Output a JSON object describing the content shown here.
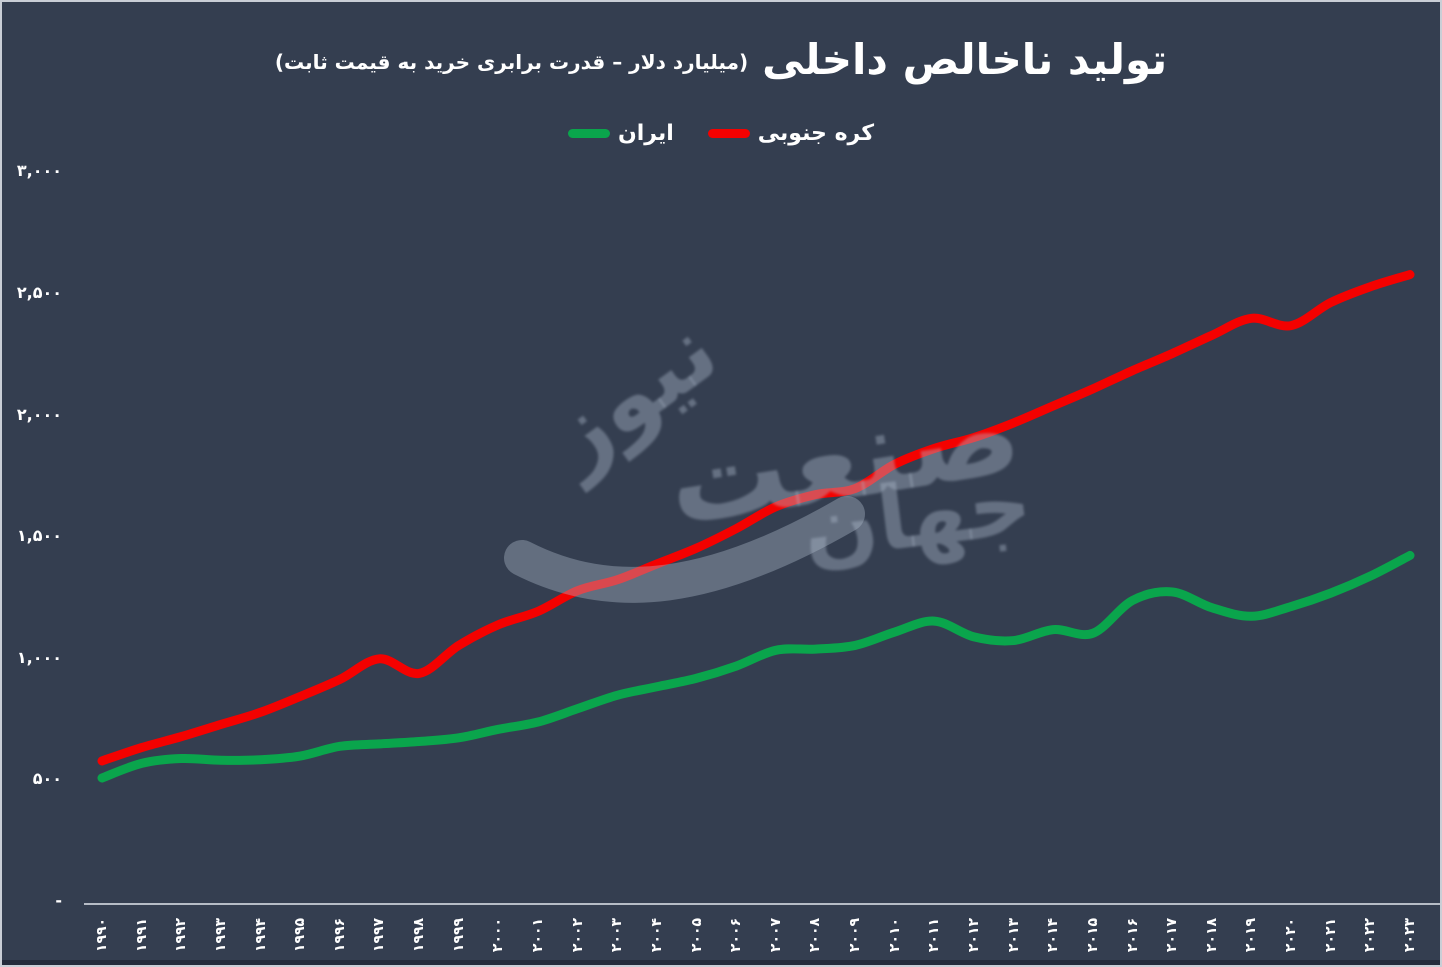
{
  "page": {
    "background_color": "#343e50",
    "frame_border_color": "#c9ced6",
    "axis_color": "#b6bcc6",
    "text_color": "#ffffff"
  },
  "title": {
    "main": "تولید ناخالص داخلی",
    "sub": "(میلیارد دلار – قدرت برابری خرید به قیمت ثابت)"
  },
  "legend": [
    {
      "label": "کره جنوبی",
      "color": "#f40100"
    },
    {
      "label": "ایران",
      "color": "#0aa54c"
    }
  ],
  "watermark": {
    "word1": "نیوز",
    "word2": "صنعت",
    "word3": "جهان"
  },
  "chart_data": {
    "type": "line",
    "title": "تولید ناخالص داخلی (میلیارد دلار – قدرت برابری خرید به قیمت ثابت)",
    "xlabel": "",
    "ylabel": "",
    "ylim": [
      0,
      3000
    ],
    "grid": false,
    "legend_position": "top",
    "x": [
      1990,
      1991,
      1992,
      1993,
      1994,
      1995,
      1996,
      1997,
      1998,
      1999,
      2000,
      2001,
      2002,
      2003,
      2004,
      2005,
      2006,
      2007,
      2008,
      2009,
      2010,
      2011,
      2012,
      2013,
      2014,
      2015,
      2016,
      2017,
      2018,
      2019,
      2020,
      2021,
      2022,
      2023
    ],
    "x_labels": [
      "۱۹۹۰",
      "۱۹۹۱",
      "۱۹۹۲",
      "۱۹۹۳",
      "۱۹۹۴",
      "۱۹۹۵",
      "۱۹۹۶",
      "۱۹۹۷",
      "۱۹۹۸",
      "۱۹۹۹",
      "۲۰۰۰",
      "۲۰۰۱",
      "۲۰۰۲",
      "۲۰۰۳",
      "۲۰۰۴",
      "۲۰۰۵",
      "۲۰۰۶",
      "۲۰۰۷",
      "۲۰۰۸",
      "۲۰۰۹",
      "۲۰۱۰",
      "۲۰۱۱",
      "۲۰۱۲",
      "۲۰۱۳",
      "۲۰۱۴",
      "۲۰۱۵",
      "۲۰۱۶",
      "۲۰۱۷",
      "۲۰۱۸",
      "۲۰۱۹",
      "۲۰۲۰",
      "۲۰۲۱",
      "۲۰۲۲",
      "۲۰۲۳"
    ],
    "y_ticks": [
      {
        "value": 0,
        "label": "-"
      },
      {
        "value": 500,
        "label": "۵۰۰"
      },
      {
        "value": 1000,
        "label": "۱,۰۰۰"
      },
      {
        "value": 1500,
        "label": "۱,۵۰۰"
      },
      {
        "value": 2000,
        "label": "۲,۰۰۰"
      },
      {
        "value": 2500,
        "label": "۲,۵۰۰"
      },
      {
        "value": 3000,
        "label": "۳,۰۰۰"
      }
    ],
    "series": [
      {
        "name": "کره جنوبی",
        "color": "#f40100",
        "values": [
          580,
          635,
          680,
          730,
          780,
          845,
          915,
          1000,
          940,
          1055,
          1140,
          1195,
          1280,
          1325,
          1390,
          1455,
          1535,
          1625,
          1675,
          1700,
          1800,
          1865,
          1910,
          1970,
          2040,
          2110,
          2185,
          2255,
          2330,
          2400,
          2370,
          2465,
          2530,
          2580
        ]
      },
      {
        "name": "ایران",
        "color": "#0aa54c",
        "values": [
          510,
          570,
          590,
          583,
          585,
          600,
          640,
          650,
          660,
          675,
          710,
          740,
          795,
          850,
          885,
          920,
          970,
          1035,
          1040,
          1055,
          1110,
          1155,
          1090,
          1075,
          1120,
          1105,
          1240,
          1275,
          1210,
          1175,
          1215,
          1270,
          1340,
          1425
        ]
      }
    ]
  }
}
